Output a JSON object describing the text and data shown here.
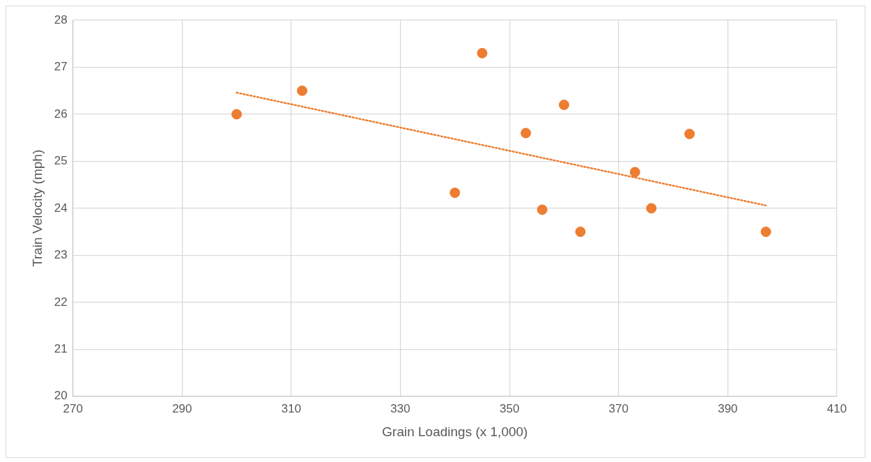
{
  "chart_data": {
    "type": "scatter",
    "xlabel": "Grain Loadings (x 1,000)",
    "ylabel": "Train Velocity (mph)",
    "xlim": [
      270,
      410
    ],
    "xticks": [
      270,
      290,
      310,
      330,
      350,
      370,
      390,
      410
    ],
    "ylim": [
      20,
      28
    ],
    "yticks": [
      20,
      21,
      22,
      23,
      24,
      25,
      26,
      27,
      28
    ],
    "grid": true,
    "legend": false,
    "marker": "circle",
    "series": [
      {
        "type": "scatter",
        "color": "#ed7d31",
        "x": [
          300,
          312,
          345,
          340,
          353,
          360,
          356,
          363,
          373,
          376,
          383,
          397
        ],
        "values": [
          26.0,
          26.5,
          27.3,
          24.33,
          25.6,
          26.2,
          23.97,
          23.5,
          24.77,
          24.0,
          25.58,
          23.5
        ]
      },
      {
        "type": "line",
        "color": "#ed7d31",
        "line_style": "dotted",
        "marker": "none",
        "x": [
          300,
          397
        ],
        "values": [
          26.46,
          24.06
        ]
      }
    ]
  }
}
